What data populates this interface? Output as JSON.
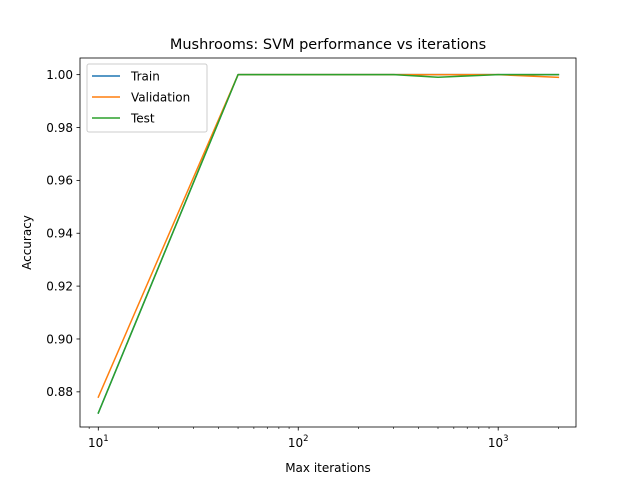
{
  "chart_data": {
    "type": "line",
    "title": "Mushrooms: SVM performance vs iterations",
    "xlabel": "Max iterations",
    "ylabel": "Accuracy",
    "x_scale": "log",
    "xlim": [
      8.1,
      2450
    ],
    "ylim": [
      0.8667,
      1.0063
    ],
    "legend_position": "upper left",
    "grid": false,
    "x_major_ticks": [
      {
        "value": 10,
        "base": "10",
        "exp": "1"
      },
      {
        "value": 100,
        "base": "10",
        "exp": "2"
      },
      {
        "value": 1000,
        "base": "10",
        "exp": "3"
      }
    ],
    "y_ticks": [
      {
        "value": 0.88,
        "label": "0.88"
      },
      {
        "value": 0.9,
        "label": "0.90"
      },
      {
        "value": 0.92,
        "label": "0.92"
      },
      {
        "value": 0.94,
        "label": "0.94"
      },
      {
        "value": 0.96,
        "label": "0.96"
      },
      {
        "value": 0.98,
        "label": "0.98"
      },
      {
        "value": 1.0,
        "label": "1.00"
      }
    ],
    "x": [
      10,
      50,
      100,
      200,
      300,
      500,
      1000,
      2000
    ],
    "series": [
      {
        "name": "Train",
        "color": "#1f77b4",
        "values": [
          0.872,
          1.0,
          1.0,
          1.0,
          1.0,
          1.0,
          1.0,
          1.0
        ]
      },
      {
        "name": "Validation",
        "color": "#ff7f0e",
        "values": [
          0.878,
          1.0,
          1.0,
          1.0,
          1.0,
          1.0,
          1.0,
          0.999
        ]
      },
      {
        "name": "Test",
        "color": "#2ca02c",
        "values": [
          0.872,
          1.0,
          1.0,
          1.0,
          1.0,
          0.999,
          1.0,
          1.0
        ]
      }
    ]
  }
}
